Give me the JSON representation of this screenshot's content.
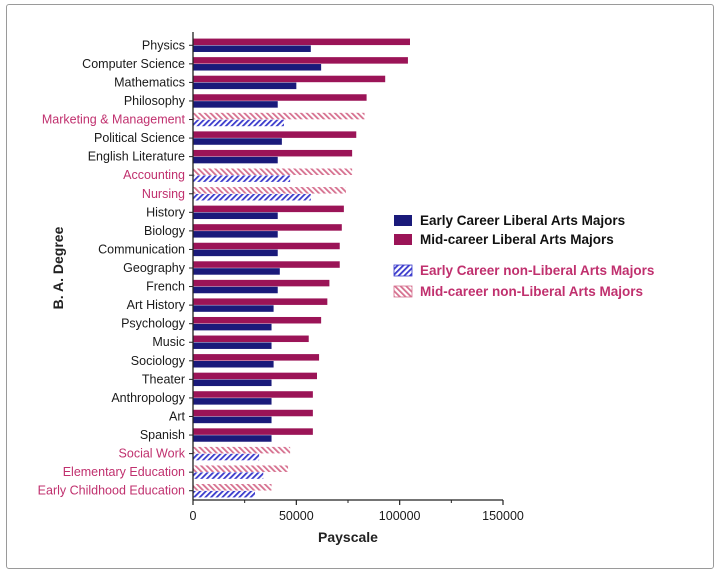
{
  "chart_data": {
    "type": "bar",
    "orientation": "horizontal",
    "xlabel": "Payscale",
    "ylabel": "B. A. Degree",
    "xlim": [
      0,
      150000
    ],
    "xticks": [
      0,
      50000,
      100000,
      150000
    ],
    "xtick_labels": [
      "0",
      "50000",
      "100000",
      "150000"
    ],
    "grid": false,
    "legend_position": "right",
    "colors": {
      "liberal_early": "#1a1a7a",
      "liberal_mid": "#9b1457",
      "nonliberal_early": "#3a3acc",
      "nonliberal_mid": "#d6708f",
      "nonliberal_label": "#c0306e"
    },
    "categories": [
      "Physics",
      "Computer Science",
      "Mathematics",
      "Philosophy",
      "Marketing & Management",
      "Political Science",
      "English Literature",
      "Accounting",
      "Nursing",
      "History",
      "Biology",
      "Communication",
      "Geography",
      "French",
      "Art History",
      "Psychology",
      "Music",
      "Sociology",
      "Theater",
      "Anthropology",
      "Art",
      "Spanish",
      "Social Work",
      "Elementary Education",
      "Early Childhood Education"
    ],
    "non_liberal_arts": [
      false,
      false,
      false,
      false,
      true,
      false,
      false,
      true,
      true,
      false,
      false,
      false,
      false,
      false,
      false,
      false,
      false,
      false,
      false,
      false,
      false,
      false,
      true,
      true,
      true
    ],
    "series": [
      {
        "name": "Mid-career",
        "values": [
          105000,
          104000,
          93000,
          84000,
          83000,
          79000,
          77000,
          77000,
          74000,
          73000,
          72000,
          71000,
          71000,
          66000,
          65000,
          62000,
          56000,
          61000,
          60000,
          58000,
          58000,
          58000,
          47000,
          46000,
          38000
        ]
      },
      {
        "name": "Early Career",
        "values": [
          57000,
          62000,
          50000,
          41000,
          44000,
          43000,
          41000,
          47000,
          57000,
          41000,
          41000,
          41000,
          42000,
          41000,
          39000,
          38000,
          38000,
          39000,
          38000,
          38000,
          38000,
          38000,
          32000,
          34000,
          30000
        ]
      }
    ],
    "legend": [
      {
        "label": "Early Career Liberal  Arts Majors",
        "style": "liberal_early"
      },
      {
        "label": "Mid-career Liberal  Arts Majors",
        "style": "liberal_mid"
      },
      {
        "label": "Early Career non-Liberal Arts Majors",
        "style": "nonliberal_early"
      },
      {
        "label": "Mid-career non-Liberal Arts Majors",
        "style": "nonliberal_mid"
      }
    ]
  }
}
